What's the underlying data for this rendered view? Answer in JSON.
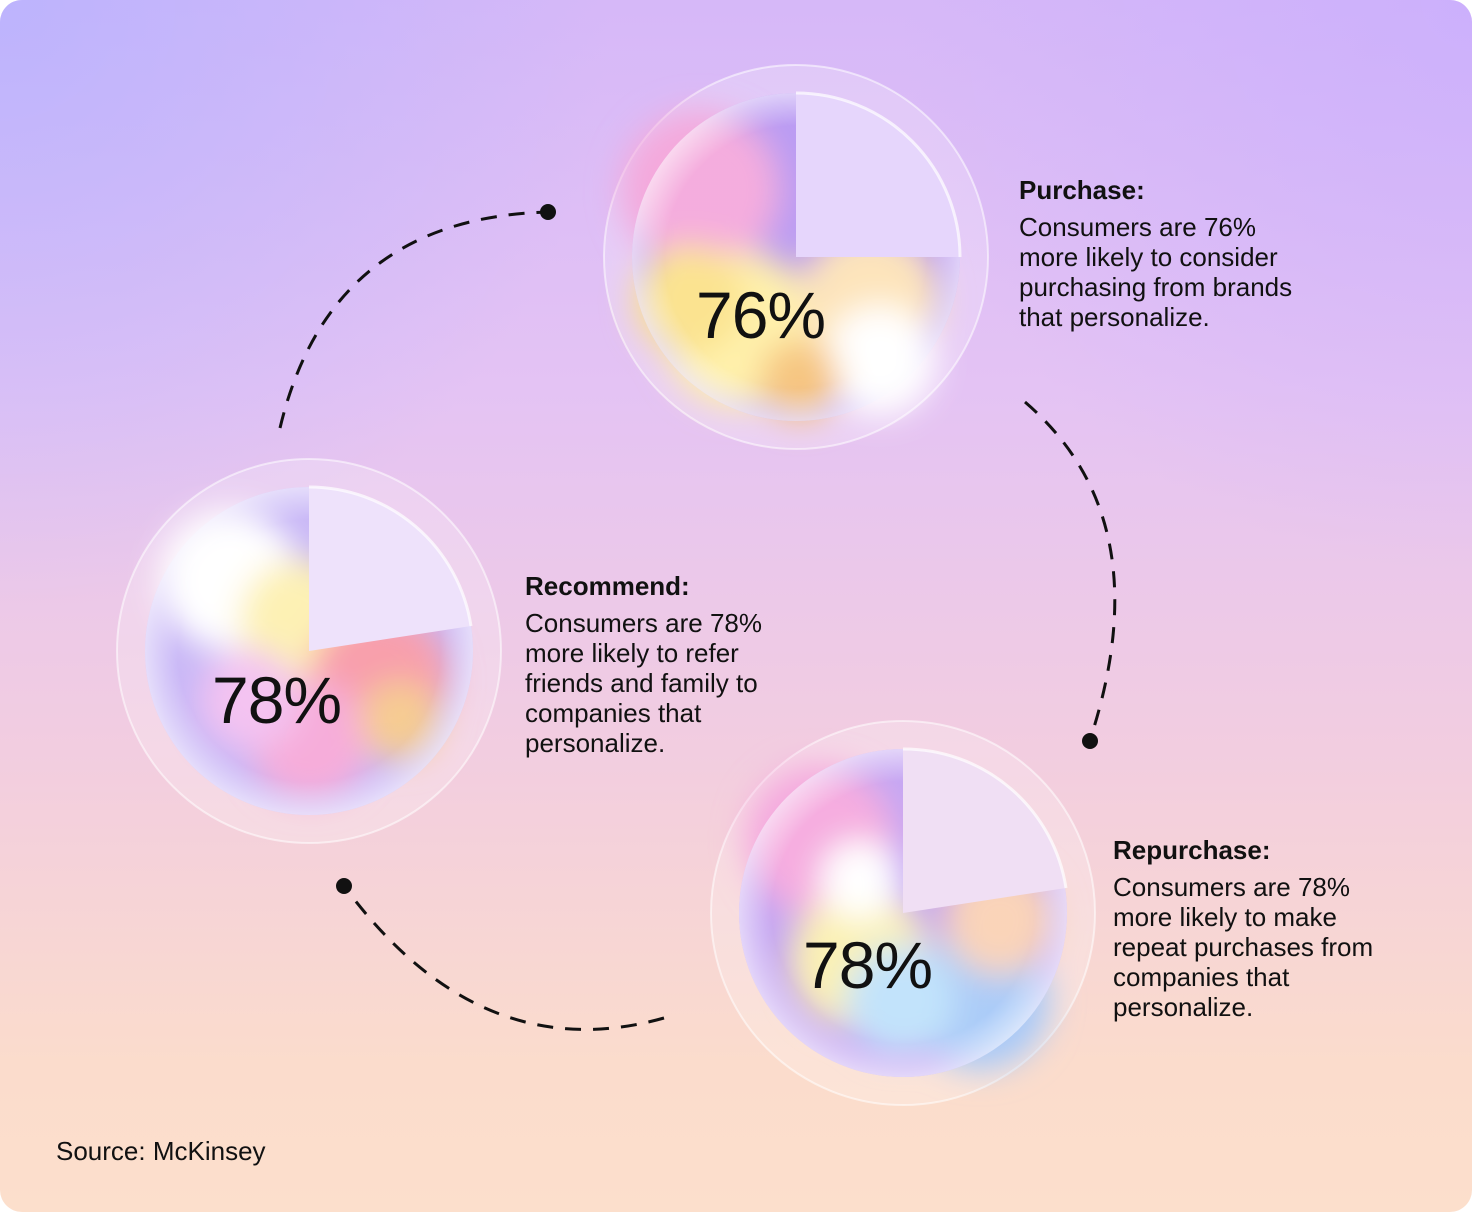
{
  "source": "Source: McKinsey",
  "stages": [
    {
      "id": "purchase",
      "percent": "76%",
      "value": 76,
      "title": "Purchase:",
      "lines": [
        "Consumers are 76%",
        "more likely to consider",
        "purchasing from brands",
        "that personalize."
      ]
    },
    {
      "id": "recommend",
      "percent": "78%",
      "value": 78,
      "title": "Recommend:",
      "lines": [
        "Consumers are 78%",
        "more likely to refer",
        "friends and family to",
        "companies that",
        "personalize."
      ]
    },
    {
      "id": "repurchase",
      "percent": "78%",
      "value": 78,
      "title": "Repurchase:",
      "lines": [
        "Consumers are 78%",
        "more likely to make",
        "repeat purchases from",
        "companies that",
        "personalize."
      ]
    }
  ]
}
